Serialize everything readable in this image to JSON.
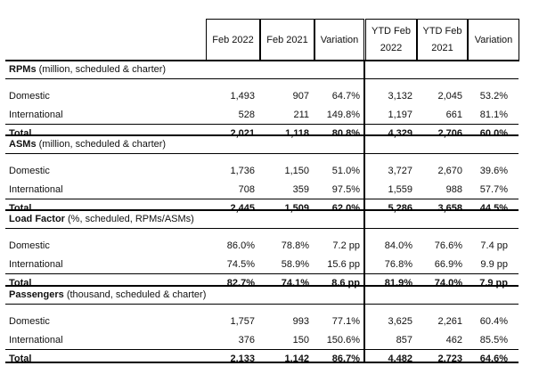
{
  "header": {
    "cols": [
      "Feb 2022",
      "Feb 2021",
      "Variation",
      [
        "YTD Feb",
        "2022"
      ],
      [
        "YTD Feb",
        "2021"
      ],
      "Variation"
    ]
  },
  "sections": [
    {
      "title_bold": "RPMs",
      "title_rest": " (million, scheduled & charter)",
      "rows": [
        {
          "label": "Domestic",
          "values": [
            "1,493",
            "907",
            "64.7%",
            "3,132",
            "2,045",
            "53.2%"
          ]
        },
        {
          "label": "International",
          "values": [
            "528",
            "211",
            "149.8%",
            "1,197",
            "661",
            "81.1%"
          ]
        },
        {
          "label": "Total",
          "values": [
            "2,021",
            "1,118",
            "80.8%",
            "4,329",
            "2,706",
            "60.0%"
          ],
          "total": true
        }
      ]
    },
    {
      "title_bold": "ASMs",
      "title_rest": " (million, scheduled & charter)",
      "rows": [
        {
          "label": "Domestic",
          "values": [
            "1,736",
            "1,150",
            "51.0%",
            "3,727",
            "2,670",
            "39.6%"
          ]
        },
        {
          "label": "International",
          "values": [
            "708",
            "359",
            "97.5%",
            "1,559",
            "988",
            "57.7%"
          ]
        },
        {
          "label": "Total",
          "values": [
            "2,445",
            "1,509",
            "62.0%",
            "5,286",
            "3,658",
            "44.5%"
          ],
          "total": true
        }
      ]
    },
    {
      "title_bold": "Load Factor",
      "title_rest": " (%, scheduled, RPMs/ASMs)",
      "rows": [
        {
          "label": "Domestic",
          "values": [
            "86.0%",
            "78.8%",
            "7.2 pp",
            "84.0%",
            "76.6%",
            "7.4 pp"
          ]
        },
        {
          "label": "International",
          "values": [
            "74.5%",
            "58.9%",
            "15.6 pp",
            "76.8%",
            "66.9%",
            "9.9 pp"
          ]
        },
        {
          "label": "Total",
          "values": [
            "82.7%",
            "74.1%",
            "8.6 pp",
            "81.9%",
            "74.0%",
            "7.9 pp"
          ],
          "total": true
        }
      ]
    },
    {
      "title_bold": "Passengers",
      "title_rest": " (thousand, scheduled & charter)",
      "rows": [
        {
          "label": "Domestic",
          "values": [
            "1,757",
            "993",
            "77.1%",
            "3,625",
            "2,261",
            "60.4%"
          ]
        },
        {
          "label": "International",
          "values": [
            "376",
            "150",
            "150.6%",
            "857",
            "462",
            "85.5%"
          ]
        },
        {
          "label": "Total",
          "values": [
            "2,133",
            "1,142",
            "86.7%",
            "4,482",
            "2,723",
            "64.6%"
          ],
          "total": true
        }
      ]
    }
  ]
}
